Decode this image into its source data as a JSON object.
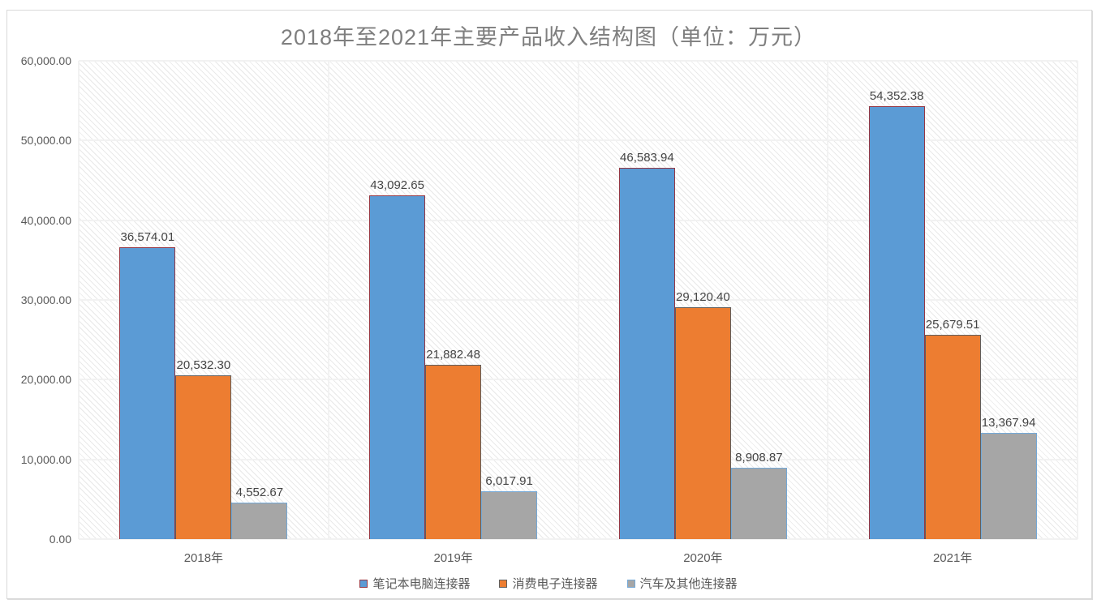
{
  "chart_data": {
    "type": "bar",
    "title": "2018年至2021年主要产品收入结构图（单位：万元）",
    "categories": [
      "2018年",
      "2019年",
      "2020年",
      "2021年"
    ],
    "series": [
      {
        "name": "笔记本电脑连接器",
        "color": "#5b9bd5",
        "border_color": "#953743",
        "values": [
          36574.01,
          43092.65,
          46583.94,
          54352.38
        ],
        "labels": [
          "36,574.01",
          "43,092.65",
          "46,583.94",
          "54,352.38"
        ]
      },
      {
        "name": "消费电子连接器",
        "color": "#ed7d31",
        "border_color": "#5f5f5f",
        "values": [
          20532.3,
          21882.48,
          29120.4,
          25679.51
        ],
        "labels": [
          "20,532.30",
          "21,882.48",
          "29,120.40",
          "25,679.51"
        ]
      },
      {
        "name": "汽车及其他连接器",
        "color": "#a6a6a6",
        "border_color": "#74a9d8",
        "values": [
          4552.67,
          6017.91,
          8908.87,
          13367.94
        ],
        "labels": [
          "4,552.67",
          "6,017.91",
          "8,908.87",
          "13,367.94"
        ]
      }
    ],
    "ylim": [
      0,
      60000
    ],
    "y_tick_step": 10000,
    "y_ticks": [
      "0.00",
      "10,000.00",
      "20,000.00",
      "30,000.00",
      "40,000.00",
      "50,000.00",
      "60,000.00"
    ],
    "grid": true,
    "legend_position": "bottom",
    "plot_hatch": "light-diagonal",
    "colors": {
      "title_text": "#7f7f7f",
      "axis_text": "#595959",
      "data_label_text": "#444444",
      "frame_border": "#d9d9d9",
      "gridline": "#f2f2f2"
    }
  }
}
